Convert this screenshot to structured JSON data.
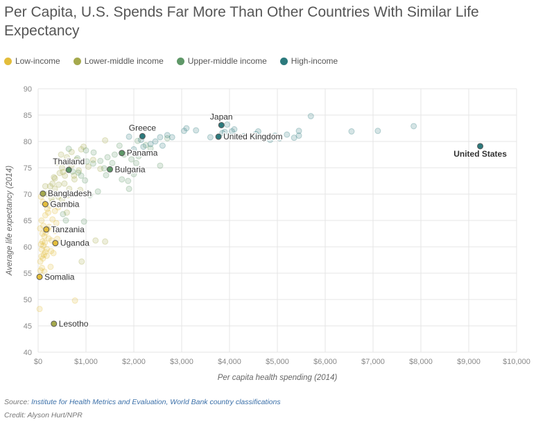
{
  "title": "Per Capita, U.S. Spends Far More Than Other Countries With Similar Life Expectancy",
  "legend": [
    {
      "label": "Low-income",
      "color": "#e3bd3b"
    },
    {
      "label": "Lower-middle income",
      "color": "#a5a94d"
    },
    {
      "label": "Upper-middle income",
      "color": "#5f9868"
    },
    {
      "label": "High-income",
      "color": "#2c7a7d"
    }
  ],
  "footer": {
    "source_prefix": "Source: ",
    "source_text": "Institute for Health Metrics and Evaluation, World Bank country classifications",
    "credit": "Credit: Alyson Hurt/NPR"
  },
  "chart_data": {
    "type": "scatter",
    "xlabel": "Per capita health spending (2014)",
    "ylabel": "Average life expectancy (2014)",
    "xlim": [
      0,
      10000
    ],
    "ylim": [
      40,
      90
    ],
    "xticks": [
      {
        "v": 0,
        "label": "$0"
      },
      {
        "v": 1000,
        "label": "$1,000"
      },
      {
        "v": 2000,
        "label": "$2,000"
      },
      {
        "v": 3000,
        "label": "$3,000"
      },
      {
        "v": 4000,
        "label": "$4,000"
      },
      {
        "v": 5000,
        "label": "$5,000"
      },
      {
        "v": 6000,
        "label": "$6,000"
      },
      {
        "v": 7000,
        "label": "$7,000"
      },
      {
        "v": 8000,
        "label": "$8,000"
      },
      {
        "v": 9000,
        "label": "$9,000"
      },
      {
        "v": 10000,
        "label": "$10,000"
      }
    ],
    "yticks": [
      {
        "v": 40,
        "label": "40"
      },
      {
        "v": 45,
        "label": "45"
      },
      {
        "v": 50,
        "label": "50"
      },
      {
        "v": 55,
        "label": "55"
      },
      {
        "v": 60,
        "label": "60"
      },
      {
        "v": 65,
        "label": "65"
      },
      {
        "v": 70,
        "label": "70"
      },
      {
        "v": 75,
        "label": "75"
      },
      {
        "v": 80,
        "label": "80"
      },
      {
        "v": 85,
        "label": "85"
      },
      {
        "v": 90,
        "label": "90"
      }
    ],
    "grid": true,
    "series": [
      {
        "name": "Low-income",
        "color": "#e3bd3b",
        "points": [
          [
            30,
            48.2
          ],
          [
            50,
            55.5
          ],
          [
            80,
            56
          ],
          [
            100,
            57.8
          ],
          [
            120,
            58.5
          ],
          [
            150,
            59
          ],
          [
            180,
            59.6
          ],
          [
            60,
            60.5
          ],
          [
            90,
            61
          ],
          [
            130,
            62
          ],
          [
            160,
            62.7
          ],
          [
            200,
            63.3
          ],
          [
            110,
            64
          ],
          [
            70,
            65
          ],
          [
            150,
            66
          ],
          [
            210,
            66.5
          ],
          [
            190,
            67.2
          ],
          [
            240,
            67.8
          ],
          [
            100,
            68.5
          ],
          [
            60,
            69.5
          ],
          [
            270,
            59.2
          ],
          [
            320,
            58.8
          ],
          [
            280,
            61.2
          ],
          [
            350,
            63
          ],
          [
            400,
            61.5
          ],
          [
            110,
            60.2
          ],
          [
            75,
            59.5
          ],
          [
            45,
            57.2
          ],
          [
            140,
            60.8
          ],
          [
            230,
            63.8
          ],
          [
            300,
            65.2
          ],
          [
            350,
            66.8
          ],
          [
            420,
            67.5
          ],
          [
            380,
            64.5
          ],
          [
            180,
            58.3
          ],
          [
            40,
            63.5
          ],
          [
            260,
            56.2
          ],
          [
            770,
            49.8
          ],
          [
            70,
            58.2
          ],
          [
            130,
            55.3
          ],
          [
            220,
            61.6
          ],
          [
            90,
            62.5
          ]
        ]
      },
      {
        "name": "Lower-middle income",
        "color": "#a5a94d",
        "points": [
          [
            200,
            70
          ],
          [
            250,
            71.5
          ],
          [
            300,
            72
          ],
          [
            350,
            73
          ],
          [
            450,
            74
          ],
          [
            500,
            75
          ],
          [
            400,
            76
          ],
          [
            600,
            77
          ],
          [
            700,
            78
          ],
          [
            800,
            76.5
          ],
          [
            900,
            78.5
          ],
          [
            350,
            71
          ],
          [
            420,
            69.5
          ],
          [
            550,
            72
          ],
          [
            650,
            71
          ],
          [
            750,
            73.5
          ],
          [
            850,
            74.5
          ],
          [
            1050,
            75.2
          ],
          [
            1150,
            76.5
          ],
          [
            950,
            79
          ],
          [
            500,
            69
          ],
          [
            600,
            66.5
          ],
          [
            300,
            68.5
          ],
          [
            150,
            71.5
          ],
          [
            480,
            77.5
          ],
          [
            700,
            75.5
          ],
          [
            760,
            72.8
          ],
          [
            560,
            73.5
          ],
          [
            880,
            70.8
          ],
          [
            910,
            57.2
          ],
          [
            1050,
            70.2
          ],
          [
            1200,
            61.2
          ],
          [
            1400,
            61
          ],
          [
            1400,
            80.2
          ],
          [
            1300,
            74.8
          ],
          [
            620,
            69.8
          ],
          [
            520,
            74.2
          ],
          [
            330,
            73.2
          ],
          [
            430,
            71.8
          ],
          [
            280,
            69.2
          ]
        ]
      },
      {
        "name": "Upper-middle income",
        "color": "#5f9868",
        "points": [
          [
            620,
            76
          ],
          [
            820,
            76.8
          ],
          [
            1000,
            78.3
          ],
          [
            1150,
            75.8
          ],
          [
            1300,
            76.3
          ],
          [
            1450,
            77
          ],
          [
            1600,
            77.5
          ],
          [
            1800,
            77.5
          ],
          [
            1950,
            76.6
          ],
          [
            2050,
            75.9
          ],
          [
            1880,
            72.5
          ],
          [
            1900,
            71
          ],
          [
            2000,
            73.8
          ],
          [
            2100,
            77.2
          ],
          [
            2250,
            79.3
          ],
          [
            2350,
            78.7
          ],
          [
            2550,
            75.4
          ],
          [
            2700,
            80.6
          ],
          [
            1700,
            79.2
          ],
          [
            1550,
            75.9
          ],
          [
            1380,
            74.9
          ],
          [
            1250,
            70.5
          ],
          [
            1080,
            69.8
          ],
          [
            980,
            72.6
          ],
          [
            840,
            74.1
          ],
          [
            1020,
            76.2
          ],
          [
            1160,
            77.9
          ],
          [
            1420,
            73.6
          ],
          [
            1750,
            72.8
          ],
          [
            2080,
            80.1
          ],
          [
            640,
            78.6
          ],
          [
            720,
            74.3
          ],
          [
            580,
            65
          ],
          [
            520,
            66.2
          ],
          [
            960,
            64.8
          ],
          [
            900,
            73.5
          ]
        ]
      },
      {
        "name": "High-income",
        "color": "#2c7a7d",
        "points": [
          [
            2200,
            79
          ],
          [
            2350,
            79.5
          ],
          [
            2450,
            80
          ],
          [
            2550,
            80.8
          ],
          [
            2700,
            81.2
          ],
          [
            2800,
            80.8
          ],
          [
            3050,
            82
          ],
          [
            3100,
            82.5
          ],
          [
            3300,
            82.1
          ],
          [
            3600,
            80.8
          ],
          [
            3850,
            81.6
          ],
          [
            3950,
            83.2
          ],
          [
            4050,
            81.9
          ],
          [
            4100,
            82.3
          ],
          [
            4300,
            81
          ],
          [
            4550,
            81.4
          ],
          [
            4950,
            81.1
          ],
          [
            5050,
            80.6
          ],
          [
            5200,
            81.3
          ],
          [
            5350,
            80.7
          ],
          [
            5450,
            81.1
          ],
          [
            5450,
            82
          ],
          [
            5700,
            84.8
          ],
          [
            6550,
            81.9
          ],
          [
            7100,
            82
          ],
          [
            7850,
            82.9
          ],
          [
            2600,
            79.2
          ],
          [
            2000,
            78.5
          ],
          [
            1900,
            80.9
          ],
          [
            2150,
            80.3
          ],
          [
            3900,
            81.8
          ],
          [
            4600,
            81.9
          ],
          [
            4850,
            80.3
          ]
        ]
      }
    ],
    "labeled_points": [
      {
        "label": "Somalia",
        "x": 30,
        "y": 54.3,
        "group": "Low-income",
        "pos": "right"
      },
      {
        "label": "Lesotho",
        "x": 330,
        "y": 45.4,
        "group": "Lower-middle income",
        "pos": "right"
      },
      {
        "label": "Uganda",
        "x": 360,
        "y": 60.7,
        "group": "Low-income",
        "pos": "right"
      },
      {
        "label": "Tanzania",
        "x": 170,
        "y": 63.3,
        "group": "Low-income",
        "pos": "right"
      },
      {
        "label": "Gambia",
        "x": 150,
        "y": 68.1,
        "group": "Low-income",
        "pos": "right"
      },
      {
        "label": "Bangladesh",
        "x": 100,
        "y": 70.1,
        "group": "Lower-middle income",
        "pos": "right"
      },
      {
        "label": "Thailand",
        "x": 640,
        "y": 74.6,
        "group": "Upper-middle income",
        "pos": "above"
      },
      {
        "label": "Bulgaria",
        "x": 1500,
        "y": 74.7,
        "group": "Upper-middle income",
        "pos": "right"
      },
      {
        "label": "Panama",
        "x": 1750,
        "y": 77.8,
        "group": "Upper-middle income",
        "pos": "right"
      },
      {
        "label": "Greece",
        "x": 2180,
        "y": 81,
        "group": "High-income",
        "pos": "above"
      },
      {
        "label": "Japan",
        "x": 3830,
        "y": 83.1,
        "group": "High-income",
        "pos": "above"
      },
      {
        "label": "United Kingdom",
        "x": 3770,
        "y": 80.9,
        "group": "High-income",
        "pos": "right"
      },
      {
        "label": "United States",
        "x": 9240,
        "y": 79.1,
        "group": "High-income",
        "pos": "below",
        "bold": true
      }
    ]
  }
}
